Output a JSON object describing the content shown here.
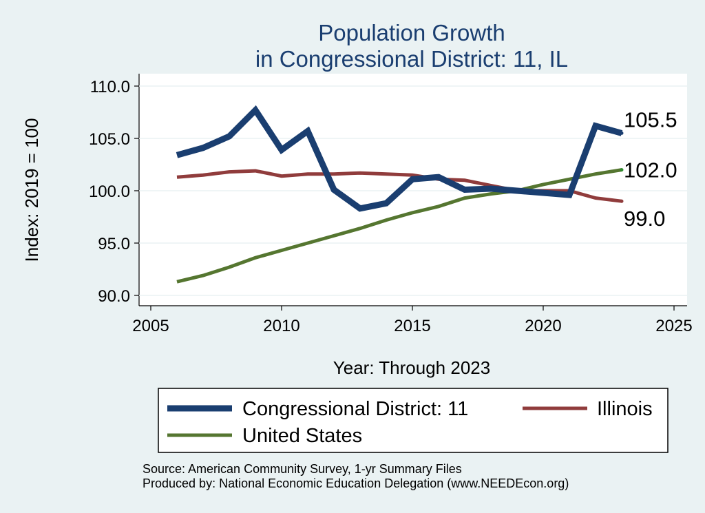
{
  "chart_data": {
    "type": "line",
    "title": [
      "Population Growth",
      "in Congressional District: 11, IL"
    ],
    "xlabel": "Year: Through 2023",
    "ylabel": "Index: 2019 = 100",
    "xlim": [
      2005,
      2025
    ],
    "ylim": [
      90,
      110
    ],
    "xticks": [
      2005,
      2010,
      2015,
      2020,
      2025
    ],
    "yticks": [
      90,
      95,
      100,
      105,
      110
    ],
    "ytick_labels": [
      "90.0",
      "95.0",
      "100.0",
      "105.0",
      "110.0"
    ],
    "grid": true,
    "x": [
      2006,
      2007,
      2008,
      2009,
      2010,
      2011,
      2012,
      2013,
      2014,
      2015,
      2016,
      2017,
      2018,
      2019,
      2020,
      2021,
      2022,
      2023
    ],
    "series": [
      {
        "name": "Congressional District: 11",
        "color": "#1a3e70",
        "values": [
          103.4,
          104.1,
          105.2,
          107.7,
          103.9,
          105.7,
          100.1,
          98.3,
          98.8,
          101.1,
          101.3,
          100.1,
          100.2,
          100.0,
          99.8,
          99.6,
          106.2,
          105.5
        ],
        "end_label": "105.5"
      },
      {
        "name": "Illinois",
        "color": "#903c3c",
        "values": [
          101.3,
          101.5,
          101.8,
          101.9,
          101.4,
          101.6,
          101.6,
          101.7,
          101.6,
          101.5,
          101.1,
          101.0,
          100.5,
          100.0,
          100.0,
          100.0,
          99.3,
          99.0
        ],
        "end_label": "99.0"
      },
      {
        "name": "United States",
        "color": "#557630",
        "values": [
          91.3,
          91.9,
          92.7,
          93.6,
          94.3,
          95.0,
          95.7,
          96.4,
          97.2,
          97.9,
          98.5,
          99.3,
          99.7,
          100.0,
          100.6,
          101.1,
          101.6,
          102.0
        ],
        "end_label": "102.0"
      }
    ],
    "legend": {
      "placement": "bottom",
      "entries": [
        "Congressional District: 11",
        "Illinois",
        "United States"
      ]
    },
    "notes": [
      "Source: American Community Survey, 1-yr Summary Files",
      "Produced by: National Economic Education Delegation (www.NEEDEcon.org)"
    ]
  }
}
